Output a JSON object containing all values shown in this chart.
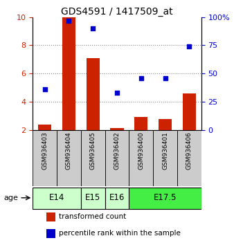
{
  "title": "GDS4591 / 1417509_at",
  "samples": [
    "GSM936403",
    "GSM936404",
    "GSM936405",
    "GSM936402",
    "GSM936400",
    "GSM936401",
    "GSM936406"
  ],
  "transformed_count": [
    2.35,
    10.0,
    7.1,
    2.15,
    2.9,
    2.75,
    4.6
  ],
  "percentile_rank": [
    36,
    97,
    90,
    33,
    46,
    46,
    74
  ],
  "age_groups": [
    {
      "label": "E14",
      "start": 0,
      "end": 1,
      "color": "#ccffcc"
    },
    {
      "label": "E15",
      "start": 2,
      "end": 2,
      "color": "#ccffcc"
    },
    {
      "label": "E16",
      "start": 3,
      "end": 3,
      "color": "#ccffcc"
    },
    {
      "label": "E17.5",
      "start": 4,
      "end": 6,
      "color": "#44ee44"
    }
  ],
  "bar_color": "#cc2200",
  "dot_color": "#0000cc",
  "left_ylim": [
    2,
    10
  ],
  "right_ylim": [
    0,
    100
  ],
  "left_yticks": [
    2,
    4,
    6,
    8,
    10
  ],
  "right_yticks": [
    0,
    25,
    50,
    75,
    100
  ],
  "right_yticklabels": [
    "0",
    "25",
    "50",
    "75",
    "100%"
  ],
  "left_ycolor": "#cc2200",
  "right_ycolor": "#0000cc",
  "grid_color": "#888888",
  "bg_color": "#ffffff",
  "sample_box_color": "#cccccc",
  "age_label": "age",
  "legend_items": [
    {
      "color": "#cc2200",
      "label": "transformed count"
    },
    {
      "color": "#0000cc",
      "label": "percentile rank within the sample"
    }
  ],
  "grid_yticks": [
    4,
    6,
    8
  ]
}
